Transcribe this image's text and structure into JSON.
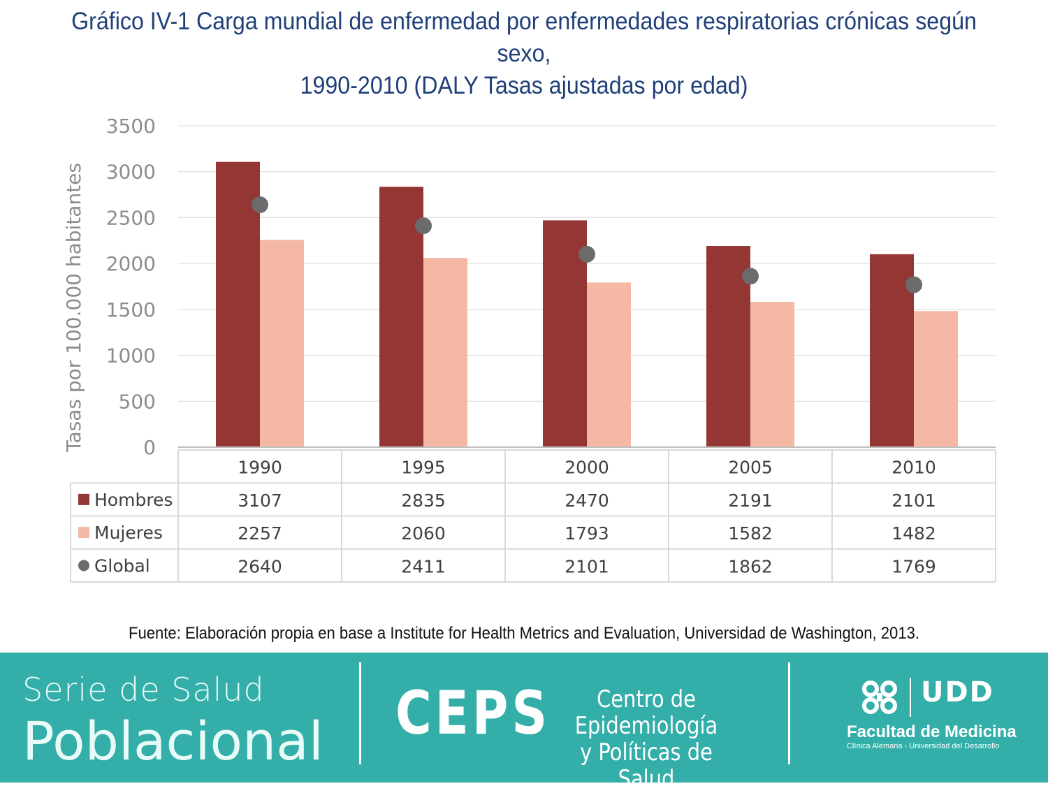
{
  "title": {
    "line1": "Gráfico IV-1 Carga mundial de enfermedad por enfermedades respiratorias crónicas según sexo,",
    "line2": "1990-2010 (DALY Tasas ajustadas por edad)"
  },
  "source": "Fuente: Elaboración propia en base a Institute for Health Metrics and Evaluation, Universidad de Washington, 2013.",
  "footer": {
    "series_line1": "Serie de Salud",
    "series_line2": "Poblacional",
    "ceps_logo": "CEPS",
    "ceps_name_line1": "Centro de Epidemiología",
    "ceps_name_line2": "y Políticas de Salud",
    "udd_logo": "UDD",
    "faculty": "Facultad de Medicina",
    "faculty_sub": "Clínica Alemana - Universidad del Desarrollo"
  },
  "chart_data": {
    "type": "bar",
    "title": "Gráfico IV-1 Carga mundial de enfermedad por enfermedades respiratorias crónicas según sexo, 1990-2010 (DALY Tasas ajustadas por edad)",
    "xlabel": "",
    "ylabel": "Tasas por 100.000 habitantes",
    "categories": [
      "1990",
      "1995",
      "2000",
      "2005",
      "2010"
    ],
    "ylim": [
      0,
      3500
    ],
    "yticks": [
      0,
      500,
      1000,
      1500,
      2000,
      2500,
      3000,
      3500
    ],
    "grid": true,
    "legend": "data-table",
    "series": [
      {
        "name": "Hombres",
        "kind": "bar",
        "color": "#943634",
        "values": [
          3107,
          2835,
          2470,
          2191,
          2101
        ]
      },
      {
        "name": "Mujeres",
        "kind": "bar",
        "color": "#f4b8a4",
        "values": [
          2257,
          2060,
          1793,
          1582,
          1482
        ]
      },
      {
        "name": "Global",
        "kind": "marker",
        "color": "#6b6b6b",
        "values": [
          2640,
          2411,
          2101,
          1862,
          1769
        ]
      }
    ]
  }
}
